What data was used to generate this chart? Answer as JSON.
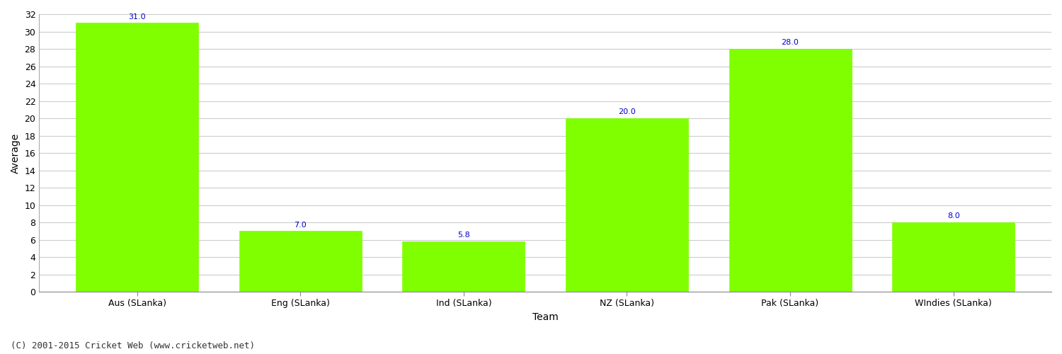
{
  "categories": [
    "Aus (SLanka)",
    "Eng (SLanka)",
    "Ind (SLanka)",
    "NZ (SLanka)",
    "Pak (SLanka)",
    "WIndies (SLanka)"
  ],
  "values": [
    31.0,
    7.0,
    5.8,
    20.0,
    28.0,
    8.0
  ],
  "bar_color": "#7fff00",
  "bar_edge_color": "#7fff00",
  "label_color": "#0000cc",
  "label_fontsize": 8,
  "xlabel": "Team",
  "ylabel": "Average",
  "ylim": [
    0,
    32
  ],
  "yticks": [
    0,
    2,
    4,
    6,
    8,
    10,
    12,
    14,
    16,
    18,
    20,
    22,
    24,
    26,
    28,
    30,
    32
  ],
  "grid_color": "#cccccc",
  "background_color": "#ffffff",
  "footer": "(C) 2001-2015 Cricket Web (www.cricketweb.net)",
  "footer_fontsize": 9,
  "axis_label_fontsize": 10,
  "tick_fontsize": 9,
  "bar_width": 0.75
}
